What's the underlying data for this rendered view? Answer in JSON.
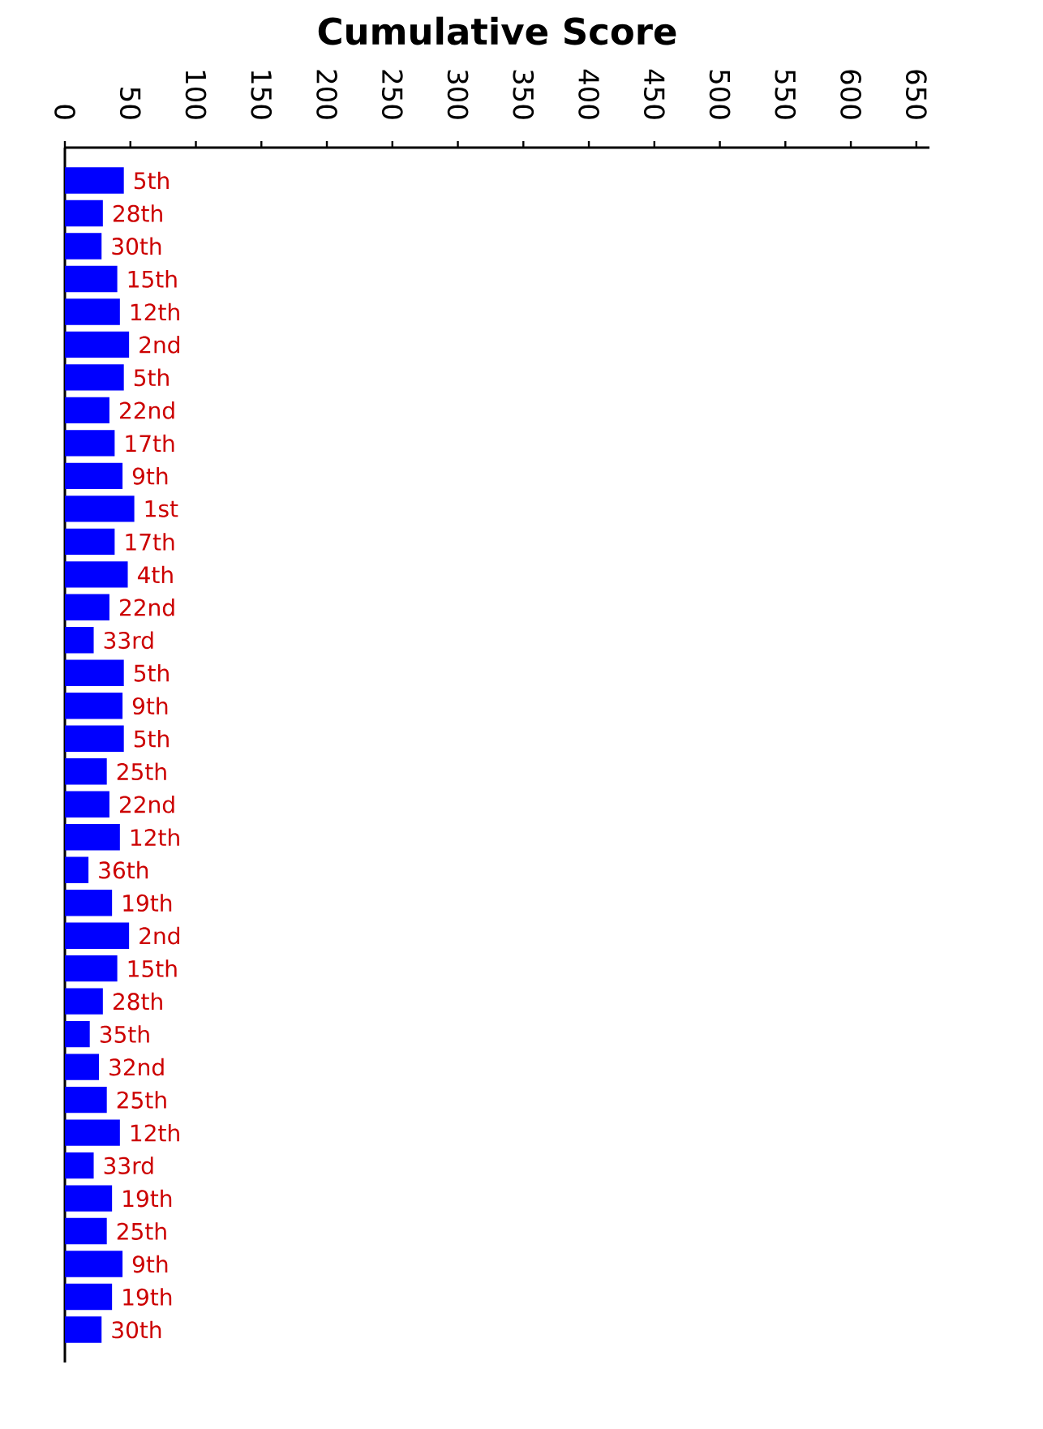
{
  "chart_data": {
    "type": "bar",
    "orientation": "horizontal",
    "title": "Cumulative Score",
    "categories": [
      null,
      null,
      null,
      null,
      null,
      null,
      null,
      null,
      null,
      null,
      null,
      null,
      null,
      null,
      null,
      null,
      null,
      null,
      null,
      null,
      null,
      null,
      null,
      null,
      null,
      null,
      null,
      null,
      null,
      null,
      null,
      null,
      null,
      null,
      null,
      null
    ],
    "values": [
      45,
      29,
      28,
      40,
      42,
      49,
      45,
      34,
      38,
      44,
      53,
      38,
      48,
      34,
      22,
      45,
      44,
      45,
      32,
      34,
      42,
      18,
      36,
      49,
      40,
      29,
      19,
      26,
      32,
      42,
      22,
      36,
      32,
      44,
      36,
      28
    ],
    "annotations": [
      {
        "text": "5th",
        "x": 45
      },
      {
        "text": "28th",
        "x": 29
      },
      {
        "text": "30th",
        "x": 28
      },
      {
        "text": "15th",
        "x": 40
      },
      {
        "text": "12th",
        "x": 42
      },
      {
        "text": "2nd",
        "x": 49
      },
      {
        "text": "5th",
        "x": 45
      },
      {
        "text": "22nd",
        "x": 34
      },
      {
        "text": "17th",
        "x": 38
      },
      {
        "text": "9th",
        "x": 44
      },
      {
        "text": "1st",
        "x": 53
      },
      {
        "text": "17th",
        "x": 38
      },
      {
        "text": "4th",
        "x": 48
      },
      {
        "text": "22nd",
        "x": 34
      },
      {
        "text": "33rd",
        "x": 22
      },
      {
        "text": "5th",
        "x": 45
      },
      {
        "text": "9th",
        "x": 44
      },
      {
        "text": "5th",
        "x": 45
      },
      {
        "text": "25th",
        "x": 32
      },
      {
        "text": "22nd",
        "x": 34
      },
      {
        "text": "12th",
        "x": 42
      },
      {
        "text": "36th",
        "x": 18
      },
      {
        "text": "19th",
        "x": 36
      },
      {
        "text": "2nd",
        "x": 49
      },
      {
        "text": "15th",
        "x": 40
      },
      {
        "text": "28th",
        "x": 29
      },
      {
        "text": "35th",
        "x": 19
      },
      {
        "text": "32nd",
        "x": 26
      },
      {
        "text": "25th",
        "x": 32
      },
      {
        "text": "12th",
        "x": 42
      },
      {
        "text": "33rd",
        "x": 22
      },
      {
        "text": "19th",
        "x": 36
      },
      {
        "text": "25th",
        "x": 32
      },
      {
        "text": "9th",
        "x": 44
      },
      {
        "text": "19th",
        "x": 36
      },
      {
        "text": "30th",
        "x": 28
      }
    ],
    "color": "#0000ff",
    "xlim": [
      0,
      660
    ],
    "xticks": [
      0,
      50,
      100,
      150,
      200,
      250,
      300,
      350,
      400,
      450,
      500,
      550,
      600,
      650
    ]
  }
}
